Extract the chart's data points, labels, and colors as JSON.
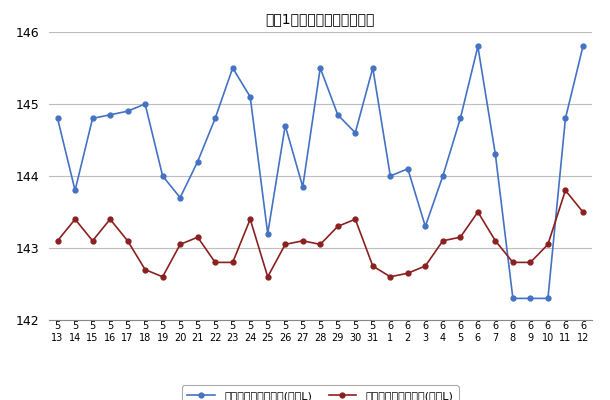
{
  "title": "最近1ヶ月のレギュラー価格",
  "x_labels_top": [
    "5",
    "5",
    "5",
    "5",
    "5",
    "5",
    "5",
    "5",
    "5",
    "5",
    "5",
    "5",
    "5",
    "5",
    "5",
    "5",
    "5",
    "5",
    "5",
    "6",
    "6",
    "6",
    "6",
    "6",
    "6",
    "6",
    "6",
    "6",
    "6",
    "6",
    "6"
  ],
  "x_labels_bottom": [
    "13",
    "14",
    "15",
    "16",
    "17",
    "18",
    "19",
    "20",
    "21",
    "22",
    "23",
    "24",
    "25",
    "26",
    "27",
    "28",
    "29",
    "30",
    "31",
    "1",
    "2",
    "3",
    "4",
    "5",
    "6",
    "7",
    "8",
    "9",
    "10",
    "11",
    "12"
  ],
  "blue_values": [
    144.8,
    143.8,
    144.8,
    144.85,
    144.9,
    145.0,
    144.0,
    143.7,
    144.2,
    144.8,
    145.5,
    145.1,
    143.2,
    144.7,
    143.85,
    145.5,
    144.85,
    144.6,
    145.5,
    144.0,
    144.1,
    143.3,
    144.0,
    144.8,
    145.8,
    144.3,
    142.3,
    142.3,
    142.3,
    144.8,
    145.8
  ],
  "red_values": [
    143.1,
    143.4,
    143.1,
    143.4,
    143.1,
    142.7,
    142.6,
    143.05,
    143.15,
    142.8,
    142.8,
    143.4,
    142.6,
    143.05,
    143.1,
    143.05,
    143.3,
    143.4,
    142.75,
    142.6,
    142.65,
    142.75,
    143.1,
    143.15,
    143.5,
    143.1,
    142.8,
    142.8,
    143.05,
    143.8,
    143.5
  ],
  "legend_blue": "レギュラー看板価格(円／L)",
  "legend_red": "レギュラー実売価格(円／L)",
  "ylim": [
    142,
    146
  ],
  "yticks": [
    142,
    143,
    144,
    145,
    146
  ],
  "blue_color": "#4472C4",
  "red_color": "#8B2020",
  "bg_color": "#FFFFFF",
  "grid_color": "#BEBEBE",
  "title_fontsize": 10
}
